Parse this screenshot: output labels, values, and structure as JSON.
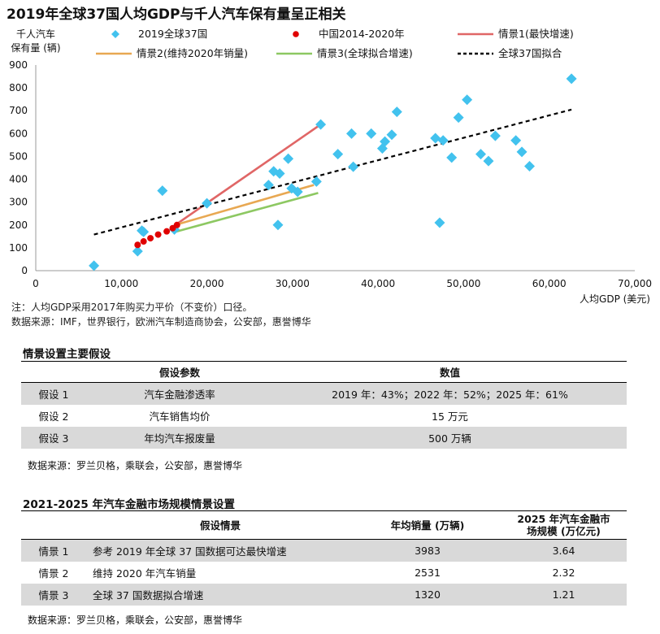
{
  "title": "2019年全球37国人均GDP与千人汽车保有量呈正相关",
  "chart_data": {
    "type": "scatter",
    "ylabel_line1": "千人汽车",
    "ylabel_line2": "保有量 (辆)",
    "xlabel": "人均GDP (美元)",
    "xlim": [
      0,
      70000
    ],
    "ylim": [
      0,
      900
    ],
    "xticks": [
      "0",
      "10,000",
      "20,000",
      "30,000",
      "40,000",
      "50,000",
      "60,000",
      "70,000"
    ],
    "yticks": [
      "0",
      "100",
      "200",
      "300",
      "400",
      "500",
      "600",
      "700",
      "800",
      "900"
    ],
    "grid": false,
    "legend": [
      {
        "label": "2019全球37国",
        "marker": "diamond",
        "color": "#42c2ee"
      },
      {
        "label": "中国2014-2020年",
        "marker": "dot",
        "color": "#e00000"
      },
      {
        "label": "情景1(最快增速)",
        "marker": "line",
        "color": "#e06666"
      },
      {
        "label": "情景2(维持2020年销量)",
        "marker": "line",
        "color": "#e8a852"
      },
      {
        "label": "情景3(全球拟合增速)",
        "marker": "line",
        "color": "#8dc862"
      },
      {
        "label": "全球37国拟合",
        "marker": "dashed",
        "color": "#000000"
      }
    ],
    "series": [
      {
        "name": "2019全球37国",
        "points": [
          [
            6800,
            22
          ],
          [
            11900,
            85
          ],
          [
            12400,
            175
          ],
          [
            12600,
            170
          ],
          [
            14800,
            350
          ],
          [
            16200,
            180
          ],
          [
            20000,
            295
          ],
          [
            27200,
            375
          ],
          [
            27800,
            435
          ],
          [
            28300,
            200
          ],
          [
            28500,
            425
          ],
          [
            29500,
            490
          ],
          [
            29900,
            360
          ],
          [
            30600,
            345
          ],
          [
            32800,
            390
          ],
          [
            33300,
            640
          ],
          [
            35300,
            510
          ],
          [
            36900,
            600
          ],
          [
            37100,
            455
          ],
          [
            39200,
            600
          ],
          [
            40500,
            535
          ],
          [
            40800,
            565
          ],
          [
            41600,
            595
          ],
          [
            42200,
            695
          ],
          [
            46700,
            580
          ],
          [
            47200,
            210
          ],
          [
            47600,
            570
          ],
          [
            48600,
            495
          ],
          [
            49400,
            670
          ],
          [
            50400,
            748
          ],
          [
            52000,
            510
          ],
          [
            52900,
            480
          ],
          [
            53700,
            590
          ],
          [
            56100,
            570
          ],
          [
            56800,
            520
          ],
          [
            57700,
            457
          ],
          [
            62600,
            840
          ]
        ]
      },
      {
        "name": "中国2014-2020年",
        "points": [
          [
            11900,
            113
          ],
          [
            12600,
            128
          ],
          [
            13400,
            142
          ],
          [
            14300,
            158
          ],
          [
            15300,
            172
          ],
          [
            16000,
            186
          ],
          [
            16500,
            200
          ]
        ]
      },
      {
        "name": "情景1(最快增速)",
        "points": [
          [
            16300,
            200
          ],
          [
            33300,
            640
          ]
        ]
      },
      {
        "name": "情景2(维持2020年销量)",
        "points": [
          [
            16300,
            200
          ],
          [
            32500,
            375
          ]
        ]
      },
      {
        "name": "情景3(全球拟合增速)",
        "points": [
          [
            16300,
            170
          ],
          [
            33000,
            340
          ]
        ]
      },
      {
        "name": "全球37国拟合",
        "points": [
          [
            6800,
            158
          ],
          [
            62600,
            705
          ]
        ]
      }
    ]
  },
  "note": "注：人均GDP采用2017年购买力平价（不变价）口径。",
  "source_chart": "数据来源：IMF，世界银行，欧洲汽车制造商协会，公安部，惠誉博华",
  "table1": {
    "title": "情景设置主要假设",
    "headers": [
      "",
      "假设参数",
      "数值"
    ],
    "rows": [
      [
        "假设 1",
        "汽车金融渗透率",
        "2019 年：43%；2022 年：52%；2025 年：61%"
      ],
      [
        "假设 2",
        "汽车销售均价",
        "15 万元"
      ],
      [
        "假设 3",
        "年均汽车报废量",
        "500 万辆"
      ]
    ],
    "source": "数据来源：罗兰贝格，乘联会，公安部，惠誉博华"
  },
  "table2": {
    "title": "2021-2025 年汽车金融市场规模情景设置",
    "headers": [
      "",
      "假设情景",
      "年均销量 (万辆)",
      "2025 年汽车金融市场规模 (万亿元)"
    ],
    "header3_line1": "2025 年汽车金融市",
    "header3_line2": "场规模 (万亿元)",
    "rows": [
      [
        "情景 1",
        "参考 2019 年全球 37 国数据可达最快增速",
        "3983",
        "3.64"
      ],
      [
        "情景 2",
        "维持 2020 年汽车销量",
        "2531",
        "2.32"
      ],
      [
        "情景 3",
        "全球 37 国数据拟合增速",
        "1320",
        "1.21"
      ]
    ],
    "source": "数据来源：罗兰贝格，乘联会，公安部，惠誉博华"
  }
}
